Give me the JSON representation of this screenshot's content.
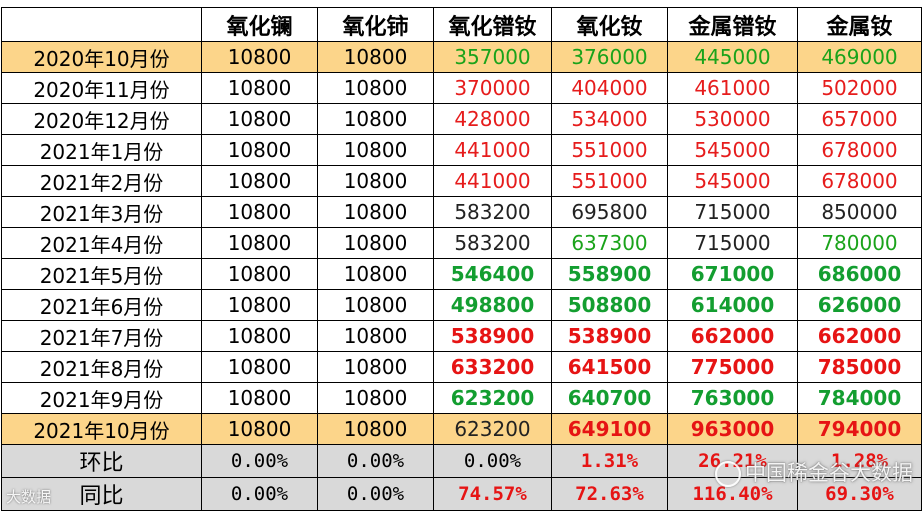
{
  "headers": [
    "",
    "氧化镧",
    "氧化铈",
    "氧化镨钕",
    "氧化钕",
    "金属镨钕",
    "金属钕"
  ],
  "rows": [
    {
      "label": "2020年10月份",
      "cells": [
        "10800",
        "10800",
        "357000",
        "376000",
        "445000",
        "469000"
      ]
    },
    {
      "label": "2020年11月份",
      "cells": [
        "10800",
        "10800",
        "370000",
        "404000",
        "461000",
        "502000"
      ]
    },
    {
      "label": "2020年12月份",
      "cells": [
        "10800",
        "10800",
        "428000",
        "534000",
        "530000",
        "657000"
      ]
    },
    {
      "label": "2021年1月份",
      "cells": [
        "10800",
        "10800",
        "441000",
        "551000",
        "545000",
        "678000"
      ]
    },
    {
      "label": "2021年2月份",
      "cells": [
        "10800",
        "10800",
        "441000",
        "551000",
        "545000",
        "678000"
      ]
    },
    {
      "label": "2021年3月份",
      "cells": [
        "10800",
        "10800",
        "583200",
        "695800",
        "715000",
        "850000"
      ]
    },
    {
      "label": "2021年4月份",
      "cells": [
        "10800",
        "10800",
        "583200",
        "637300",
        "715000",
        "780000"
      ]
    },
    {
      "label": "2021年5月份",
      "cells": [
        "10800",
        "10800",
        "546400",
        "558900",
        "671000",
        "686000"
      ]
    },
    {
      "label": "2021年6月份",
      "cells": [
        "10800",
        "10800",
        "498800",
        "508800",
        "614000",
        "626000"
      ]
    },
    {
      "label": "2021年7月份",
      "cells": [
        "10800",
        "10800",
        "538900",
        "538900",
        "662000",
        "662000"
      ]
    },
    {
      "label": "2021年8月份",
      "cells": [
        "10800",
        "10800",
        "633200",
        "641500",
        "775000",
        "785000"
      ]
    },
    {
      "label": "2021年9月份",
      "cells": [
        "10800",
        "10800",
        "623200",
        "640700",
        "763000",
        "784000"
      ]
    },
    {
      "label": "2021年10月份",
      "cells": [
        "10800",
        "10800",
        "623200",
        "649100",
        "963000",
        "794000"
      ]
    }
  ],
  "summary": [
    {
      "label": "环比",
      "cells": [
        "0.00%",
        "0.00%",
        "0.00%",
        "1.31%",
        "26.21%",
        "1.28%"
      ]
    },
    {
      "label": "同比",
      "cells": [
        "0.00%",
        "0.00%",
        "74.57%",
        "72.63%",
        "116.40%",
        "69.30%"
      ]
    }
  ],
  "colors": {
    "highlight_row": "#fcd58a",
    "summary_row": "#d9d9d9",
    "green": "#1aa31a",
    "red": "#e61c1c"
  },
  "watermark": {
    "main": "中国稀金谷大数据",
    "corner": "大数据"
  }
}
